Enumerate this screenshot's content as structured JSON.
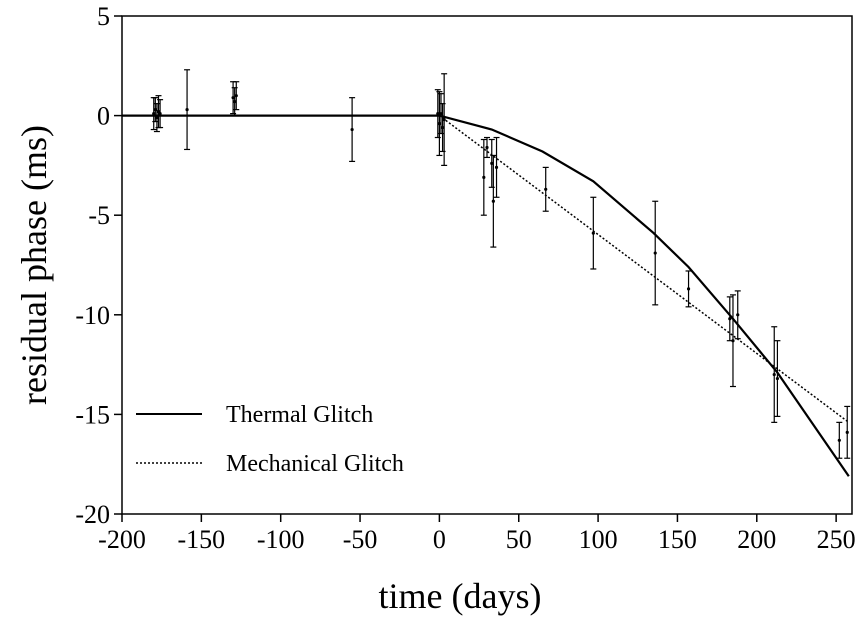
{
  "chart_data": {
    "type": "line",
    "title": "",
    "xlabel": "time (days)",
    "ylabel": "residual phase (ms)",
    "xlim": [
      -200,
      260
    ],
    "ylim": [
      -20,
      5
    ],
    "x_ticks": [
      -200,
      -150,
      -100,
      -50,
      0,
      50,
      100,
      150,
      200,
      250
    ],
    "y_ticks": [
      5,
      0,
      -5,
      -10,
      -15,
      -20
    ],
    "legend_position": "bottom-left",
    "series": [
      {
        "name": "Thermal Glitch",
        "style": "solid",
        "x": [
          -200,
          0,
          33,
          65,
          97,
          135,
          157,
          185,
          213,
          258
        ],
        "y": [
          0,
          0,
          -0.7,
          -1.8,
          -3.3,
          -5.9,
          -7.6,
          -10.2,
          -12.9,
          -18.1
        ]
      },
      {
        "name": "Mechanical Glitch",
        "style": "dotted",
        "x": [
          0,
          258
        ],
        "y": [
          0,
          -15.4
        ]
      }
    ],
    "observations": [
      {
        "x": -180,
        "y": 0.1,
        "err": 0.8
      },
      {
        "x": -179,
        "y": 0.3,
        "err": 0.6
      },
      {
        "x": -178,
        "y": -0.1,
        "err": 0.7
      },
      {
        "x": -177,
        "y": 0.2,
        "err": 0.8
      },
      {
        "x": -176,
        "y": 0.1,
        "err": 0.7
      },
      {
        "x": -159,
        "y": 0.3,
        "err": 2.0
      },
      {
        "x": -130,
        "y": 0.9,
        "err": 0.8
      },
      {
        "x": -129,
        "y": 0.7,
        "err": 0.7
      },
      {
        "x": -128,
        "y": 1.0,
        "err": 0.7
      },
      {
        "x": -55,
        "y": -0.7,
        "err": 1.6
      },
      {
        "x": -1,
        "y": 0.1,
        "err": 1.2
      },
      {
        "x": 0,
        "y": -0.4,
        "err": 1.6
      },
      {
        "x": 1,
        "y": 0.1,
        "err": 1.0
      },
      {
        "x": 2,
        "y": -0.6,
        "err": 1.2
      },
      {
        "x": 3,
        "y": -0.2,
        "err": 2.3
      },
      {
        "x": 28,
        "y": -3.1,
        "err": 1.9
      },
      {
        "x": 30,
        "y": -1.6,
        "err": 0.5
      },
      {
        "x": 33,
        "y": -2.4,
        "err": 1.2
      },
      {
        "x": 34,
        "y": -4.3,
        "err": 2.3
      },
      {
        "x": 36,
        "y": -2.6,
        "err": 1.5
      },
      {
        "x": 67,
        "y": -3.7,
        "err": 1.1
      },
      {
        "x": 97,
        "y": -5.9,
        "err": 1.8
      },
      {
        "x": 136,
        "y": -6.9,
        "err": 2.6
      },
      {
        "x": 157,
        "y": -8.7,
        "err": 0.9
      },
      {
        "x": 183,
        "y": -10.2,
        "err": 1.1
      },
      {
        "x": 185,
        "y": -11.3,
        "err": 2.3
      },
      {
        "x": 188,
        "y": -10.0,
        "err": 1.2
      },
      {
        "x": 211,
        "y": -13.0,
        "err": 2.4
      },
      {
        "x": 213,
        "y": -13.2,
        "err": 1.9
      },
      {
        "x": 252,
        "y": -16.3,
        "err": 0.9
      },
      {
        "x": 257,
        "y": -15.9,
        "err": 1.3
      }
    ]
  }
}
